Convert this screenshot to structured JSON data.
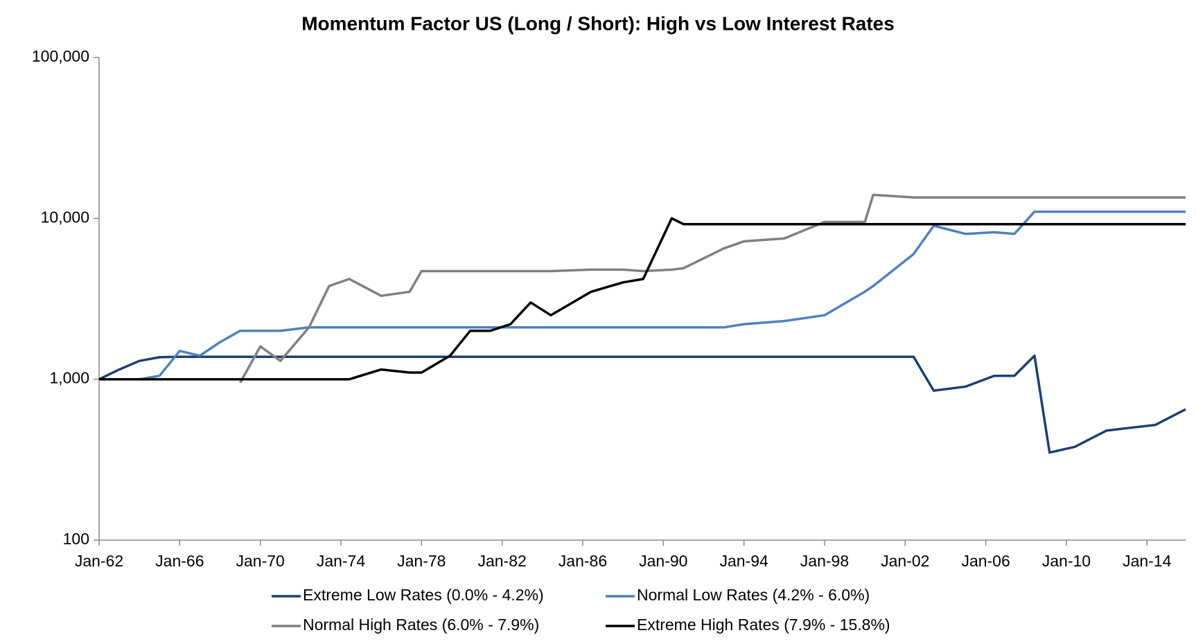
{
  "chart_data": {
    "type": "line",
    "title": "Momentum Factor US (Long / Short): High vs Low Interest Rates",
    "x": [
      "1962-01",
      "1963-01",
      "1964-01",
      "1965-01",
      "1966-01",
      "1967-01",
      "1968-01",
      "1969-01",
      "1970-01",
      "1971-01",
      "1972-06",
      "1973-06",
      "1974-06",
      "1976-01",
      "1977-06",
      "1978-01",
      "1979-06",
      "1980-06",
      "1981-06",
      "1982-06",
      "1983-06",
      "1984-06",
      "1986-06",
      "1988-01",
      "1989-01",
      "1990-06",
      "1991-01",
      "1993-01",
      "1994-01",
      "1996-01",
      "1998-01",
      "2000-01",
      "2000-06",
      "2002-06",
      "2003-06",
      "2005-01",
      "2006-06",
      "2007-06",
      "2008-06",
      "2009-03",
      "2010-06",
      "2012-01",
      "2014-06",
      "2015-12"
    ],
    "series": [
      {
        "name": "Extreme Low Rates (0.0% - 4.2%)",
        "color": "#1f3f6e",
        "values": [
          1000,
          1150,
          1300,
          1370,
          1380,
          1380,
          1380,
          1380,
          1380,
          1380,
          1380,
          1380,
          1380,
          1380,
          1380,
          1380,
          1380,
          1380,
          1380,
          1380,
          1380,
          1380,
          1380,
          1380,
          1380,
          1380,
          1380,
          1380,
          1380,
          1380,
          1380,
          1380,
          1380,
          1380,
          850,
          900,
          1050,
          1050,
          1400,
          350,
          380,
          480,
          520,
          650
        ]
      },
      {
        "name": "Normal Low Rates (4.2% - 6.0%)",
        "color": "#4f81bd",
        "values": [
          null,
          null,
          1000,
          1050,
          1500,
          1400,
          1700,
          2000,
          2000,
          2000,
          2100,
          2100,
          2100,
          2100,
          2100,
          2100,
          2100,
          2100,
          2100,
          2100,
          2100,
          2100,
          2100,
          2100,
          2100,
          2100,
          2100,
          2100,
          2200,
          2300,
          2500,
          3500,
          3800,
          6000,
          9000,
          8000,
          8200,
          8000,
          11000,
          11000,
          11000,
          11000,
          11000,
          11000
        ]
      },
      {
        "name": "Normal High Rates (6.0% - 7.9%)",
        "color": "#808080",
        "values": [
          null,
          null,
          null,
          null,
          null,
          null,
          null,
          950,
          1600,
          1300,
          2100,
          3800,
          4200,
          3300,
          3500,
          4700,
          4700,
          4700,
          4700,
          4700,
          4700,
          4700,
          4800,
          4800,
          4700,
          4800,
          4900,
          6500,
          7200,
          7500,
          9500,
          9500,
          14000,
          13500,
          13500,
          13500,
          13500,
          13500,
          13500,
          13500,
          13500,
          13500,
          13500,
          13500
        ]
      },
      {
        "name": "Extreme High Rates (7.9% - 15.8%)",
        "color": "#000000",
        "values": [
          1000,
          1000,
          1000,
          1000,
          1000,
          1000,
          1000,
          1000,
          1000,
          1000,
          1000,
          1000,
          1000,
          1150,
          1100,
          1100,
          1400,
          2000,
          2000,
          2200,
          3000,
          2500,
          3500,
          4000,
          4200,
          10000,
          9200,
          9200,
          9200,
          9200,
          9200,
          9200,
          9200,
          9200,
          9200,
          9200,
          9200,
          9200,
          9200,
          9200,
          9200,
          9200,
          9200,
          9200
        ]
      }
    ],
    "xlim": [
      "1962-01",
      "2015-12"
    ],
    "xticks": [
      {
        "value": "1962-01",
        "label": "Jan-62"
      },
      {
        "value": "1966-01",
        "label": "Jan-66"
      },
      {
        "value": "1970-01",
        "label": "Jan-70"
      },
      {
        "value": "1974-01",
        "label": "Jan-74"
      },
      {
        "value": "1978-01",
        "label": "Jan-78"
      },
      {
        "value": "1982-01",
        "label": "Jan-82"
      },
      {
        "value": "1986-01",
        "label": "Jan-86"
      },
      {
        "value": "1990-01",
        "label": "Jan-90"
      },
      {
        "value": "1994-01",
        "label": "Jan-94"
      },
      {
        "value": "1998-01",
        "label": "Jan-98"
      },
      {
        "value": "2002-01",
        "label": "Jan-02"
      },
      {
        "value": "2006-01",
        "label": "Jan-06"
      },
      {
        "value": "2010-01",
        "label": "Jan-10"
      },
      {
        "value": "2014-01",
        "label": "Jan-14"
      }
    ],
    "ylim": [
      100,
      100000
    ],
    "yticks": [
      100,
      {
        "value": 1000,
        "label": "1,000"
      },
      {
        "value": 10000,
        "label": "10,000"
      },
      {
        "value": 100000,
        "label": "100,000"
      }
    ],
    "log_y": true,
    "grid": false,
    "legend": "bottom"
  }
}
